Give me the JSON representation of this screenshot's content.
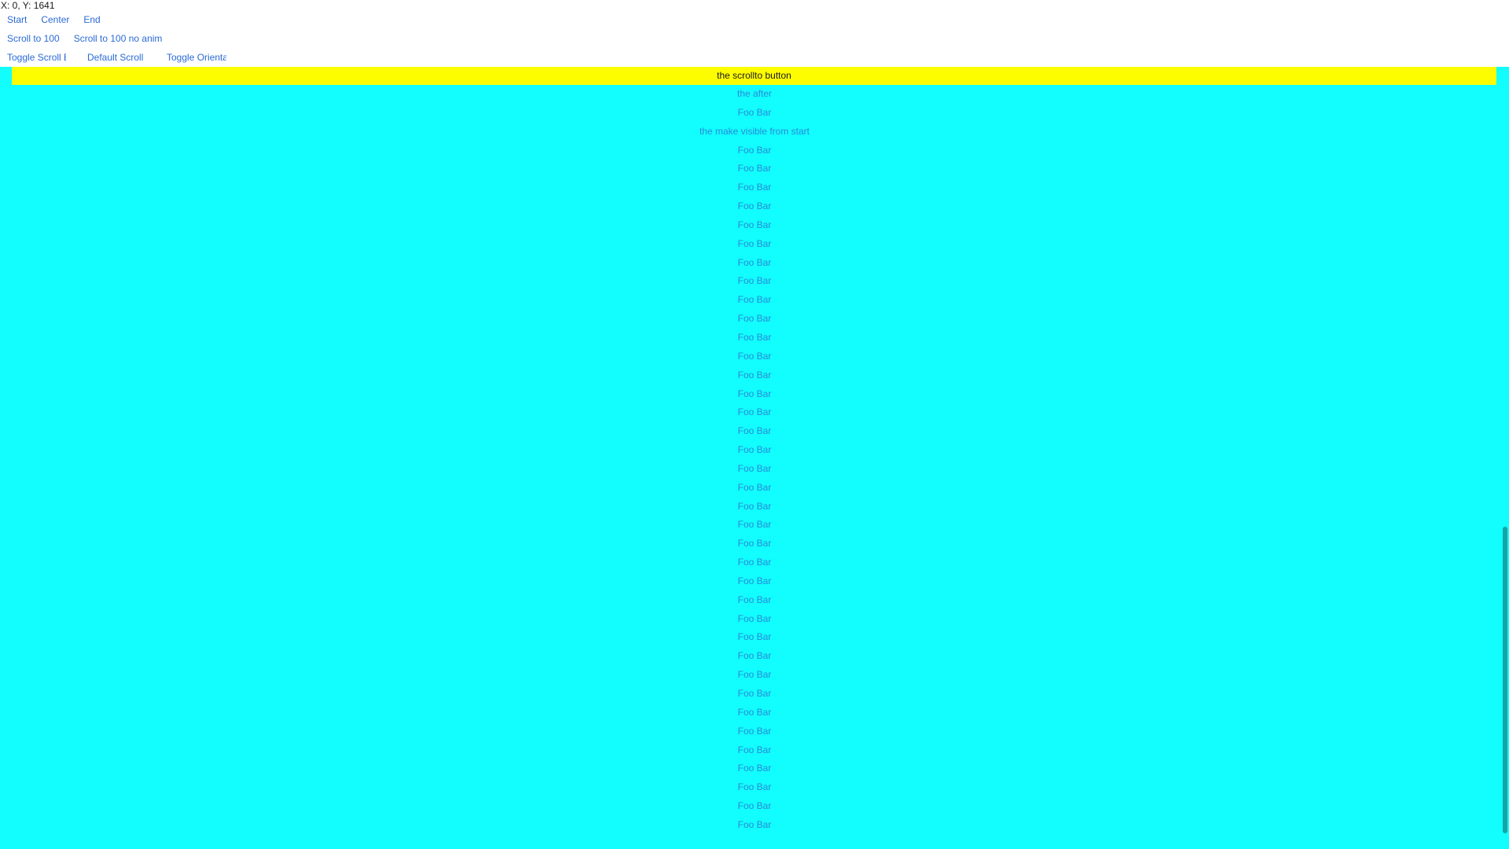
{
  "coord_readout": "X: 0, Y: 1641",
  "toolbar": {
    "row1": [
      "Start",
      "Center",
      "End"
    ],
    "row2": [
      "Scroll to 100",
      "Scroll to 100 no anim"
    ],
    "row3": [
      "Toggle Scroll E",
      "Default Scroll I",
      "Toggle Orienta"
    ]
  },
  "scroll_content": {
    "scrollto_button": "the scrollto button",
    "items": [
      "the after",
      "Foo Bar",
      "the make visible from start",
      "Foo Bar",
      "Foo Bar",
      "Foo Bar",
      "Foo Bar",
      "Foo Bar",
      "Foo Bar",
      "Foo Bar",
      "Foo Bar",
      "Foo Bar",
      "Foo Bar",
      "Foo Bar",
      "Foo Bar",
      "Foo Bar",
      "Foo Bar",
      "Foo Bar",
      "Foo Bar",
      "Foo Bar",
      "Foo Bar",
      "Foo Bar",
      "Foo Bar",
      "Foo Bar",
      "Foo Bar",
      "Foo Bar",
      "Foo Bar",
      "Foo Bar",
      "Foo Bar",
      "Foo Bar",
      "Foo Bar",
      "Foo Bar",
      "Foo Bar",
      "Foo Bar",
      "Foo Bar",
      "Foo Bar",
      "Foo Bar",
      "Foo Bar",
      "Foo Bar",
      "Foo Bar"
    ]
  },
  "colors": {
    "scroll_background": "#11fdfe",
    "scrollto_button_background": "#fefd00",
    "link_text": "#2a6ad6",
    "item_text": "#2a8ad6",
    "scrollbar_thumb": "#14a6a6"
  }
}
